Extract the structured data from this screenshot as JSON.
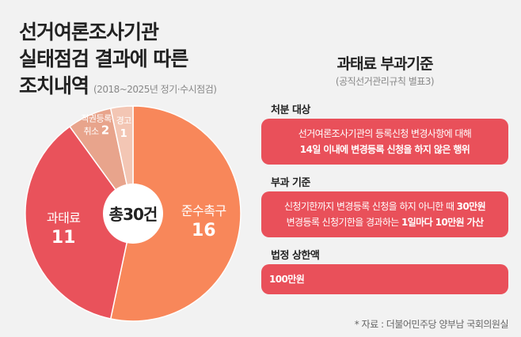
{
  "title": {
    "lines": [
      "선거여론조사기관",
      "실태점검 결과에 따른",
      "조치내역"
    ],
    "subtitle": "(2018~2025년 정기·수시점검)"
  },
  "chart_data": {
    "type": "pie",
    "title": "선거여론조사기관 실태점검 결과에 따른 조치내역",
    "subtitle": "(2018~2025년 정기·수시점검)",
    "center_label": "총30건",
    "total": 30,
    "slices": [
      {
        "label": "준수촉구",
        "value": 16,
        "color": "#f8875a"
      },
      {
        "label": "과태료",
        "value": 11,
        "color": "#e9525b"
      },
      {
        "label": "직권등록 취소",
        "label_lines": [
          "직권등록",
          "취소"
        ],
        "value": 2,
        "color": "#e8a48c"
      },
      {
        "label": "경고",
        "value": 1,
        "color": "#f3c6b4"
      }
    ]
  },
  "right": {
    "title": "과태료 부과기준",
    "subtitle": "(공직선거관리규칙 별표3)",
    "sections": [
      {
        "heading": "처분 대상",
        "lines": [
          [
            {
              "t": "선거여론조사기관의 등록신청 변경사항에 대해"
            }
          ],
          [
            {
              "t": "14일 이내에 변경등록 신청을 하지 않은 행위",
              "b": true
            }
          ]
        ]
      },
      {
        "heading": "부과 기준",
        "lines": [
          [
            {
              "t": "신청기한까지 변경등록 신청을 하지 아니한 때 "
            },
            {
              "t": "30만원",
              "b": true
            }
          ],
          [
            {
              "t": "변경등록 신청기한을 경과하는 "
            },
            {
              "t": "1일마다 10만원 가산",
              "b": true
            }
          ]
        ]
      },
      {
        "heading": "법정 상한액",
        "lines": [
          [
            {
              "t": "100만원",
              "b": true
            }
          ]
        ]
      }
    ]
  },
  "footnote": "* 자료 : 더불어민주당 양부남 국회의원실"
}
